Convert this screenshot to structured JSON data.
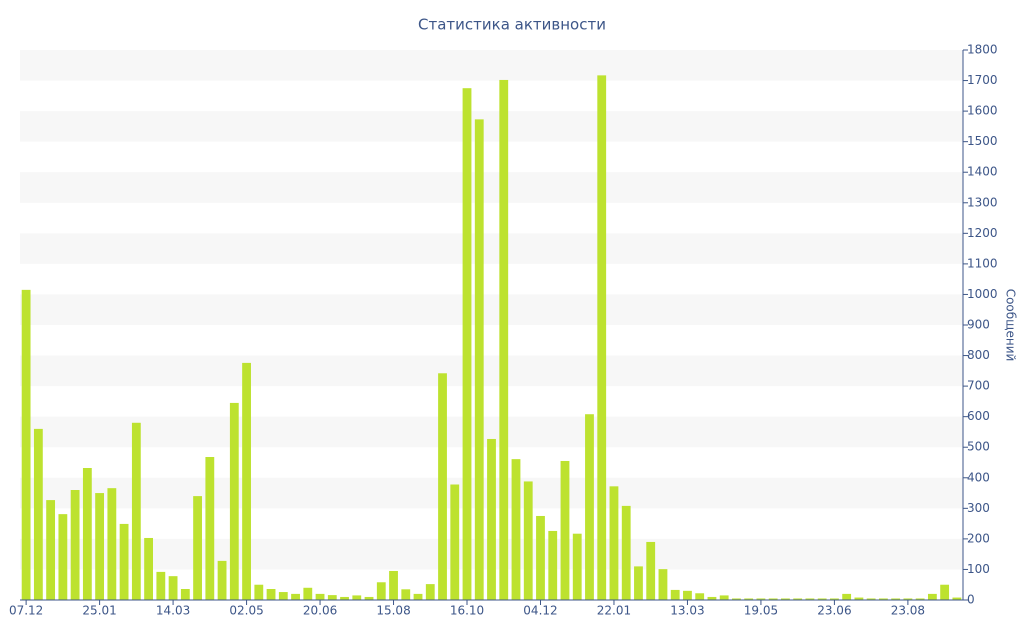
{
  "chart_data": {
    "type": "bar",
    "title": "Статистика активности",
    "y_label": "Сообщений",
    "categories": [
      "07.12",
      null,
      null,
      null,
      null,
      null,
      "25.01",
      null,
      null,
      null,
      null,
      null,
      "14.03",
      null,
      null,
      null,
      null,
      null,
      "02.05",
      null,
      null,
      null,
      null,
      null,
      "20.06",
      null,
      null,
      null,
      null,
      null,
      "15.08",
      null,
      null,
      null,
      null,
      null,
      "16.10",
      null,
      null,
      null,
      null,
      null,
      "04.12",
      null,
      null,
      null,
      null,
      null,
      "22.01",
      null,
      null,
      null,
      null,
      null,
      "13.03",
      null,
      null,
      null,
      null,
      null,
      "19.05",
      null,
      null,
      null,
      null,
      null,
      "23.06",
      null,
      null,
      null,
      null,
      null,
      "23.08",
      null,
      null,
      null,
      null
    ],
    "values": [
      1015,
      560,
      327,
      281,
      360,
      432,
      350,
      366,
      249,
      580,
      203,
      92,
      78,
      36,
      340,
      468,
      128,
      645,
      776,
      50,
      36,
      26,
      20,
      40,
      20,
      16,
      10,
      15,
      10,
      58,
      95,
      35,
      20,
      52,
      742,
      378,
      1675,
      1573,
      527,
      1702,
      461,
      388,
      275,
      226,
      455,
      217,
      608,
      1717,
      372,
      308,
      110,
      190,
      101,
      33,
      30,
      22,
      10,
      15,
      5,
      5,
      5,
      5,
      5,
      5,
      5,
      5,
      5,
      20,
      8,
      5,
      5,
      5,
      5,
      5,
      20,
      50,
      8
    ],
    "color": "#bde22f",
    "ylim": [
      0,
      1800
    ],
    "yticks": [
      0,
      100,
      200,
      300,
      400,
      500,
      600,
      700,
      800,
      900,
      1000,
      1100,
      1200,
      1300,
      1400,
      1500,
      1600,
      1700,
      1800
    ],
    "grid": true
  }
}
